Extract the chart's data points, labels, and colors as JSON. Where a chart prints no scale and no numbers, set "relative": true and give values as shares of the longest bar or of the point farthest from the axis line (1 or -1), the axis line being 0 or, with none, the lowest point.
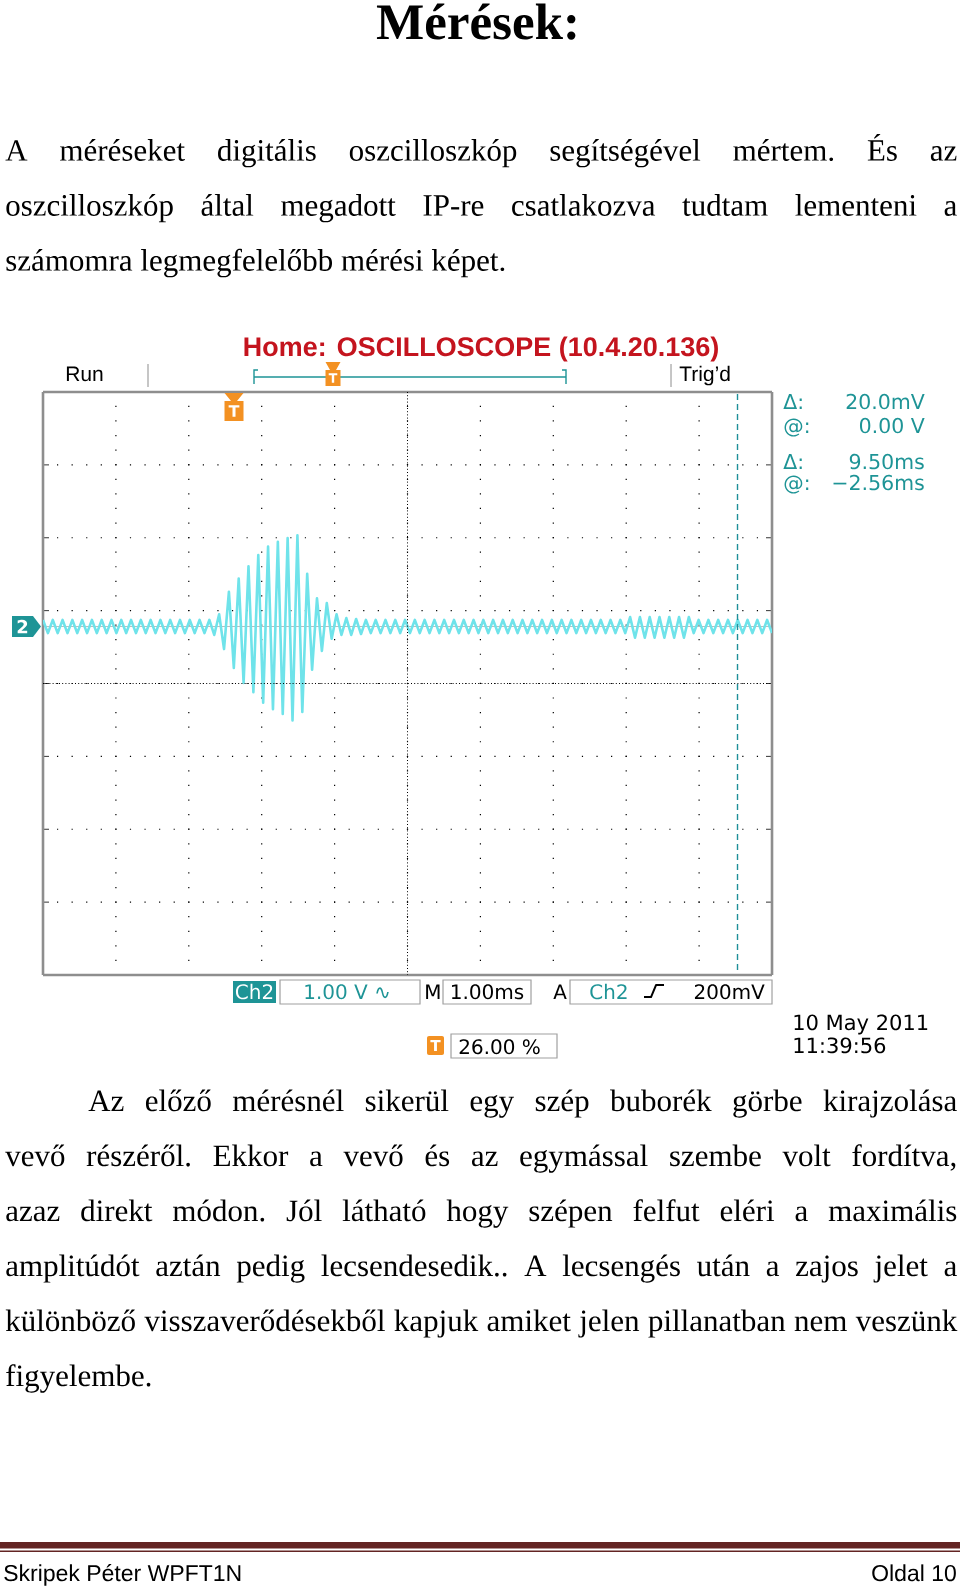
{
  "chart_data": {
    "type": "line",
    "title": "Mérések:",
    "relative": true,
    "grid": true,
    "categories": [
      null,
      null,
      null,
      null,
      null,
      null,
      null,
      null,
      null,
      null,
      null,
      null,
      null,
      null,
      null,
      null,
      null,
      null,
      null,
      null,
      null,
      null,
      null,
      null,
      null,
      null,
      null,
      null,
      null,
      null,
      null,
      null,
      null,
      null,
      null,
      null,
      null,
      null,
      null,
      null,
      null,
      null,
      null,
      null,
      null,
      null,
      null,
      null,
      null,
      null,
      null,
      null,
      null,
      null,
      null,
      null,
      null,
      null,
      null,
      null,
      null,
      null,
      null,
      null,
      null,
      null,
      null,
      null,
      null,
      null,
      null,
      null,
      null,
      null,
      null,
      null,
      null,
      null,
      null,
      null,
      null,
      null,
      null,
      null,
      null,
      null,
      null,
      null,
      null,
      null,
      null,
      null,
      null,
      null,
      null,
      null,
      null,
      null,
      null,
      null,
      null,
      null,
      null,
      null,
      null,
      null,
      null,
      null,
      null,
      null,
      null,
      null,
      null,
      null,
      null,
      null,
      null,
      null,
      null,
      null,
      null,
      null,
      null,
      null,
      null,
      null,
      null,
      null,
      null,
      null,
      null,
      null,
      null,
      null,
      null,
      null,
      null,
      null,
      null,
      null,
      null,
      null,
      null,
      null,
      null,
      null,
      null,
      null,
      null,
      null
    ],
    "series": [
      {
        "color": "#6fe3ea",
        "values": [
          0.07,
          -0.07,
          0.07,
          -0.07,
          0.07,
          -0.07,
          0.07,
          -0.07,
          0.07,
          -0.07,
          0.07,
          -0.07,
          0.07,
          -0.07,
          0.07,
          -0.07,
          0.07,
          -0.07,
          0.07,
          -0.07,
          0.07,
          -0.07,
          0.07,
          -0.07,
          0.07,
          -0.07,
          0.07,
          -0.07,
          0.07,
          -0.07,
          0.07,
          -0.07,
          0.07,
          -0.07,
          0.07,
          -0.09,
          0.13,
          -0.24,
          0.37,
          -0.44,
          0.51,
          -0.6,
          0.64,
          -0.7,
          0.76,
          -0.81,
          0.85,
          -0.88,
          0.9,
          -0.93,
          0.94,
          -1.0,
          0.97,
          -0.91,
          0.56,
          -0.46,
          0.3,
          -0.26,
          0.25,
          -0.13,
          0.13,
          -0.09,
          0.09,
          -0.09,
          0.08,
          -0.08,
          0.07,
          -0.07,
          0.07,
          -0.07,
          0.07,
          -0.07,
          0.07,
          -0.07,
          0.07,
          -0.07,
          0.07,
          -0.07,
          0.07,
          -0.07,
          0.07,
          -0.07,
          0.07,
          -0.07,
          0.07,
          -0.07,
          0.07,
          -0.07,
          0.07,
          -0.07,
          0.07,
          -0.07,
          0.07,
          -0.07,
          0.07,
          -0.07,
          0.07,
          -0.07,
          0.07,
          -0.07,
          0.07,
          -0.07,
          0.07,
          -0.07,
          0.07,
          -0.07,
          0.07,
          -0.07,
          0.07,
          -0.07,
          0.07,
          -0.07,
          0.07,
          -0.07,
          0.07,
          -0.07,
          0.07,
          -0.07,
          0.07,
          -0.07,
          0.1,
          -0.12,
          0.1,
          -0.12,
          0.1,
          -0.12,
          0.1,
          -0.12,
          0.1,
          -0.12,
          0.1,
          -0.12,
          0.1,
          -0.07,
          0.07,
          -0.07,
          0.07,
          -0.07,
          0.07,
          -0.07,
          0.07,
          -0.07,
          0.07,
          -0.07,
          0.07,
          -0.07,
          0.07,
          -0.07,
          0.07,
          -0.07
        ]
      }
    ],
    "annotations": [
      "A méréseket digitális oszcilloszkóp segítségével mértem. És az oszcilloszkóp által megadott IP-re csatlakozva tudtam lementeni a számomra legmegfelelőbb mérési képet.",
      "Home: OSCILLOSCOPE (10.4.20.136)",
      "Run",
      "Trig’d",
      "Δ:",
      "20.0mV",
      "@:",
      "0.00 V",
      "Δ:",
      "9.50ms",
      "@:",
      "−2.56ms",
      "Ch2",
      "1.00 V ∿",
      "M",
      "1.00ms",
      "A",
      "Ch2",
      "200mV",
      "T",
      "26.00 %",
      "10 May 2011",
      "11:39:56",
      "2",
      "T",
      "T",
      "Az előző mérésnél sikerül egy szép buborék görbe kirajzolása vevő részéről. Ekkor a vevő és az egymással szembe volt fordítva, azaz direkt módon. Jól látható hogy szépen felfut eléri a maximális amplitúdót aztán pedig lecsendesedik.. A lecsengés után a zajos jelet a különböző visszaverődésekből kapjuk amiket jelen pillanatban nem veszünk figyelembe.",
      "Skripek Péter WPFT1N",
      "Oldal 10"
    ]
  }
}
